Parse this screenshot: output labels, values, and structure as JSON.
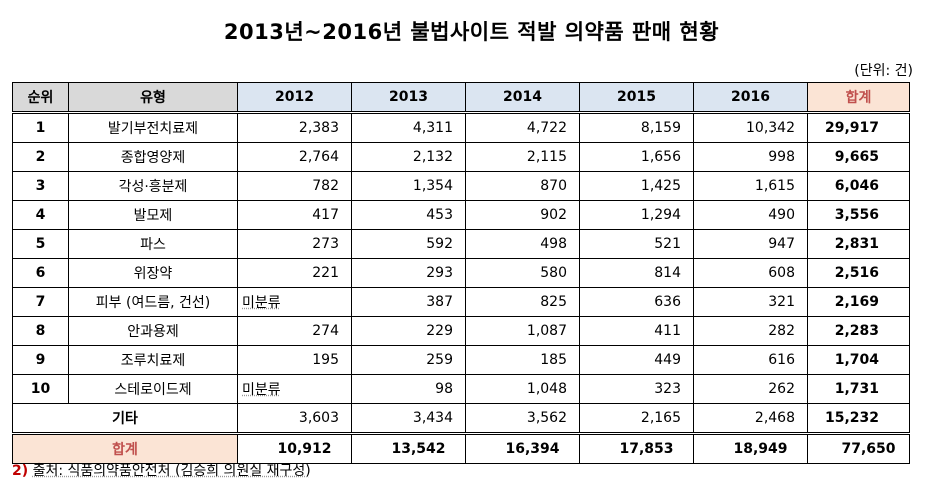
{
  "title": "2013년~2016년 불법사이트 적발 의약품 판매 현황",
  "unit": "(단위: 건)",
  "headers": {
    "rank": "순위",
    "type": "유형",
    "y2012": "2012",
    "y2013": "2013",
    "y2014": "2014",
    "y2015": "2015",
    "y2016": "2016",
    "total": "합계"
  },
  "rows": [
    {
      "rank": "1",
      "type": "발기부전치료제",
      "y2012": "2,383",
      "y2013": "4,311",
      "y2014": "4,722",
      "y2015": "8,159",
      "y2016": "10,342",
      "total": "29,917"
    },
    {
      "rank": "2",
      "type": "종합영양제",
      "y2012": "2,764",
      "y2013": "2,132",
      "y2014": "2,115",
      "y2015": "1,656",
      "y2016": "998",
      "total": "9,665"
    },
    {
      "rank": "3",
      "type": "각성·흥분제",
      "y2012": "782",
      "y2013": "1,354",
      "y2014": "870",
      "y2015": "1,425",
      "y2016": "1,615",
      "total": "6,046"
    },
    {
      "rank": "4",
      "type": "발모제",
      "y2012": "417",
      "y2013": "453",
      "y2014": "902",
      "y2015": "1,294",
      "y2016": "490",
      "total": "3,556"
    },
    {
      "rank": "5",
      "type": "파스",
      "y2012": "273",
      "y2013": "592",
      "y2014": "498",
      "y2015": "521",
      "y2016": "947",
      "total": "2,831"
    },
    {
      "rank": "6",
      "type": "위장약",
      "y2012": "221",
      "y2013": "293",
      "y2014": "580",
      "y2015": "814",
      "y2016": "608",
      "total": "2,516"
    },
    {
      "rank": "7",
      "type": "피부 (여드름, 건선)",
      "y2012": "미분류",
      "y2013": "387",
      "y2014": "825",
      "y2015": "636",
      "y2016": "321",
      "total": "2,169"
    },
    {
      "rank": "8",
      "type": "안과용제",
      "y2012": "274",
      "y2013": "229",
      "y2014": "1,087",
      "y2015": "411",
      "y2016": "282",
      "total": "2,283"
    },
    {
      "rank": "9",
      "type": "조루치료제",
      "y2012": "195",
      "y2013": "259",
      "y2014": "185",
      "y2015": "449",
      "y2016": "616",
      "total": "1,704"
    },
    {
      "rank": "10",
      "type": "스테로이드제",
      "y2012": "미분류",
      "y2013": "98",
      "y2014": "1,048",
      "y2015": "323",
      "y2016": "262",
      "total": "1,731"
    }
  ],
  "etc": {
    "type": "기타",
    "y2012": "3,603",
    "y2013": "3,434",
    "y2014": "3,562",
    "y2015": "2,165",
    "y2016": "2,468",
    "total": "15,232"
  },
  "sum": {
    "label": "합계",
    "y2012": "10,912",
    "y2013": "13,542",
    "y2014": "16,394",
    "y2015": "17,853",
    "y2016": "18,949",
    "total": "77,650"
  },
  "source": {
    "num": "2)",
    "text": "출처: 식품의약품안전처 (김승희 의원실 재구성)"
  },
  "colors": {
    "header_grey": "#d9d9d9",
    "header_blue": "#dbe5f1",
    "sum_bg": "#fbe4d5",
    "sum_text": "#c0504d"
  }
}
